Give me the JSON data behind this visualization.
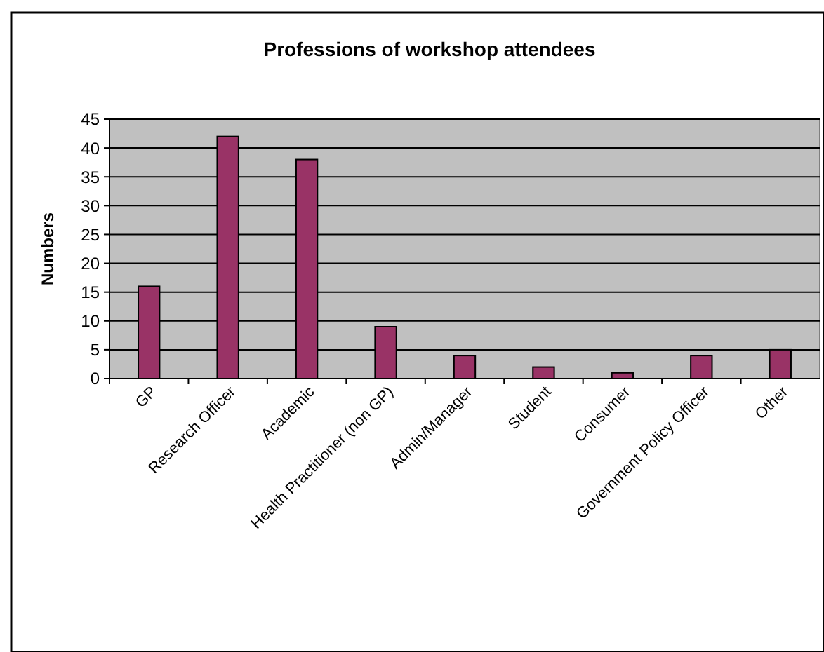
{
  "chart_data": {
    "type": "bar",
    "title": "Professions of workshop attendees",
    "ylabel": "Numbers",
    "categories": [
      "GP",
      "Research Officer",
      "Academic",
      "Health Practitioner (non GP)",
      "Admin/Manager",
      "Student",
      "Consumer",
      "Government Policy Officer",
      "Other"
    ],
    "values": [
      16,
      42,
      38,
      9,
      4,
      2,
      1,
      4,
      5
    ],
    "color": "#993366",
    "ylim": [
      0,
      45
    ],
    "yticks": [
      0,
      5,
      10,
      15,
      20,
      25,
      30,
      35,
      40,
      45
    ],
    "grid": "y"
  }
}
